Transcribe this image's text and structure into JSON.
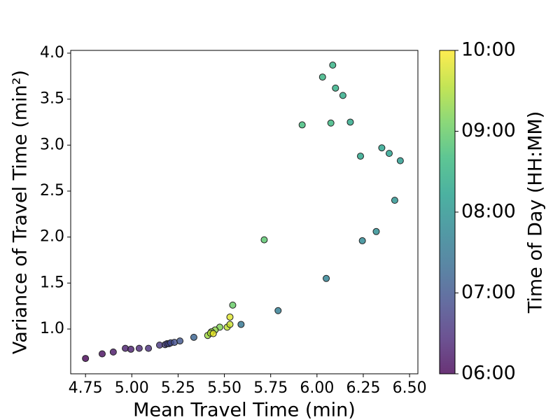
{
  "chart_data": {
    "type": "scatter",
    "xlabel": "Mean Travel Time (min)",
    "ylabel": "Variance of Travel Time (min²)",
    "colorbar_label": "Time of Day (HH:MM)",
    "colormap": "viridis",
    "x": [
      4.75,
      4.84,
      4.9,
      4.965,
      4.995,
      5.04,
      5.09,
      5.15,
      5.18,
      5.19,
      5.2,
      5.21,
      5.23,
      5.26,
      5.335,
      5.59,
      5.79,
      6.05,
      6.245,
      6.32,
      6.42,
      6.45,
      6.39,
      6.35,
      6.235,
      6.18,
      6.14,
      6.1,
      6.085,
      6.03,
      6.075,
      5.92,
      5.715,
      5.545,
      5.475,
      5.45,
      5.43,
      5.41,
      5.425,
      5.515,
      5.53,
      5.53,
      5.44
    ],
    "values": [
      0.68,
      0.73,
      0.75,
      0.79,
      0.78,
      0.79,
      0.79,
      0.825,
      0.83,
      0.84,
      0.84,
      0.85,
      0.855,
      0.87,
      0.91,
      1.05,
      1.2,
      1.55,
      1.96,
      2.06,
      2.4,
      2.83,
      2.91,
      2.97,
      2.88,
      3.25,
      3.54,
      3.62,
      3.87,
      3.74,
      3.24,
      3.22,
      1.97,
      1.26,
      1.02,
      0.99,
      0.97,
      0.93,
      0.955,
      1.02,
      1.05,
      1.13,
      0.95
    ],
    "c": [
      6.0,
      6.1,
      6.2,
      6.3,
      6.3,
      6.4,
      6.5,
      6.6,
      6.7,
      6.75,
      6.8,
      6.85,
      6.9,
      7.0,
      7.2,
      7.5,
      7.6,
      7.7,
      7.8,
      7.9,
      8.0,
      8.1,
      8.2,
      8.25,
      8.3,
      8.35,
      8.4,
      8.45,
      8.5,
      8.55,
      8.6,
      8.7,
      8.9,
      9.0,
      9.2,
      9.3,
      9.35,
      9.4,
      9.5,
      9.6,
      9.7,
      9.8,
      9.85
    ],
    "xlim": [
      4.67,
      6.545
    ],
    "ylim": [
      0.513,
      4.03
    ],
    "clim": [
      6,
      10
    ],
    "xticks": [
      {
        "value": 4.75,
        "label": "4.75"
      },
      {
        "value": 5.0,
        "label": "5.00"
      },
      {
        "value": 5.25,
        "label": "5.25"
      },
      {
        "value": 5.5,
        "label": "5.50"
      },
      {
        "value": 5.75,
        "label": "5.75"
      },
      {
        "value": 6.0,
        "label": "6.00"
      },
      {
        "value": 6.25,
        "label": "6.25"
      },
      {
        "value": 6.5,
        "label": "6.50"
      }
    ],
    "yticks": [
      {
        "value": 1.0,
        "label": "1.0"
      },
      1.5,
      {
        "value": 2.0,
        "label": "2.0"
      },
      2.5,
      {
        "value": 3.0,
        "label": "3.0"
      },
      3.5,
      {
        "value": 4.0,
        "label": "4.0"
      }
    ],
    "cticks": [
      {
        "value": 6,
        "label": "06:00"
      },
      {
        "value": 7,
        "label": "07:00"
      },
      {
        "value": 8,
        "label": "08:00"
      },
      {
        "value": 9,
        "label": "09:00"
      },
      {
        "value": 10,
        "label": "10:00"
      }
    ]
  }
}
